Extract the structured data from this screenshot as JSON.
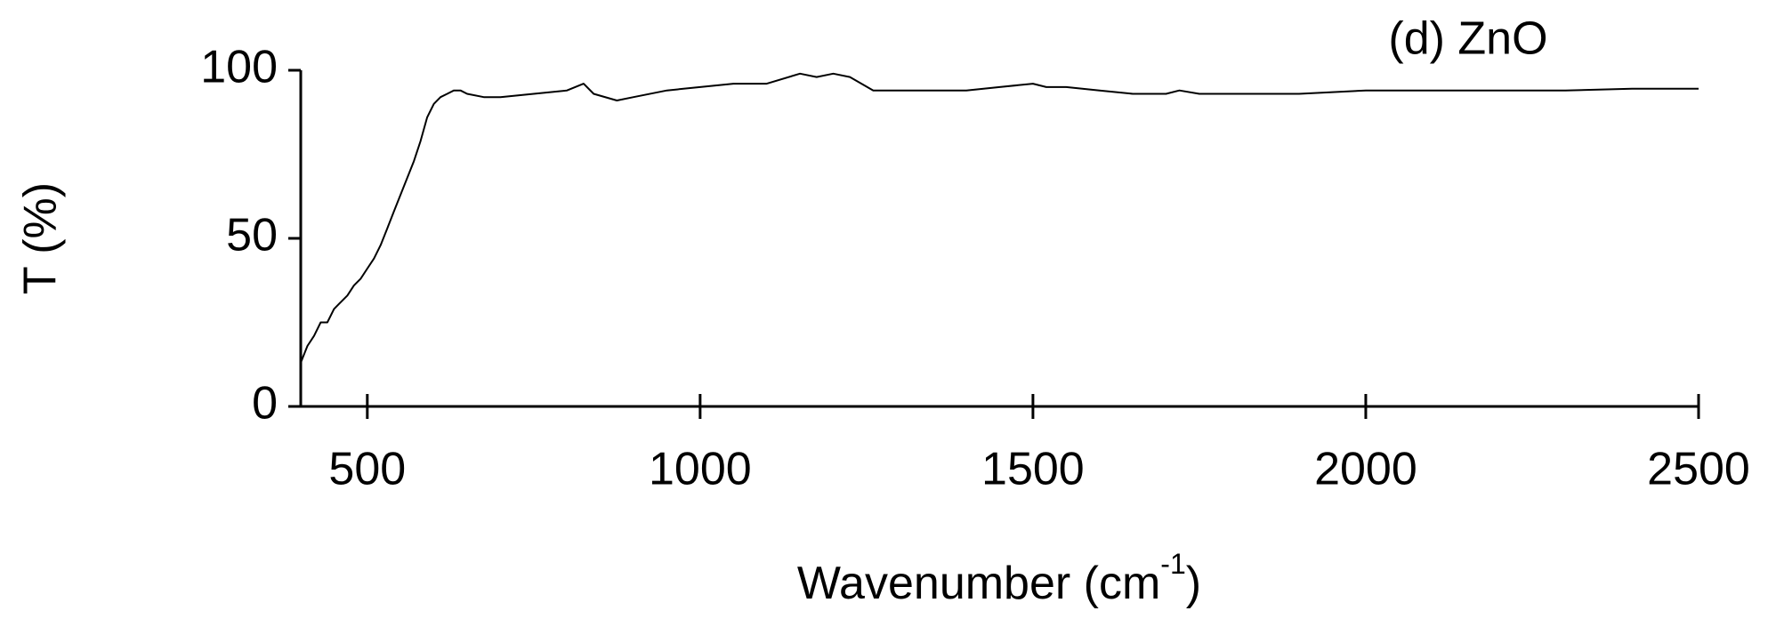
{
  "chart_data": {
    "type": "line",
    "annotation": "(d) ZnO",
    "xlabel": [
      "Wavenumber (cm",
      "-1",
      ")"
    ],
    "ylabel": "T (%)",
    "xlim": [
      400,
      2500
    ],
    "xticks": [
      500,
      1000,
      1500,
      2000,
      2500
    ],
    "ylim": [
      0,
      100
    ],
    "yticks": [
      0,
      50,
      100
    ],
    "series": [
      {
        "color": "#000000",
        "x": [
          400,
          410,
          420,
          430,
          440,
          450,
          460,
          470,
          480,
          490,
          500,
          510,
          520,
          530,
          540,
          550,
          560,
          570,
          580,
          590,
          600,
          610,
          620,
          630,
          640,
          650,
          675,
          700,
          750,
          800,
          825,
          840,
          875,
          900,
          950,
          1000,
          1050,
          1100,
          1150,
          1175,
          1200,
          1225,
          1260,
          1300,
          1350,
          1400,
          1450,
          1500,
          1520,
          1550,
          1600,
          1650,
          1700,
          1720,
          1750,
          1800,
          1900,
          2000,
          2100,
          2200,
          2300,
          2400,
          2500
        ],
        "values": [
          13,
          18,
          21,
          25,
          25,
          29,
          31,
          33,
          36,
          38,
          41,
          44,
          48,
          53,
          58,
          63,
          68,
          73,
          79,
          86,
          90,
          92,
          93,
          94,
          94,
          93,
          92,
          92,
          93,
          94,
          96,
          93,
          91,
          92,
          94,
          95,
          96,
          96,
          99,
          98,
          99,
          98,
          94,
          94,
          94,
          94,
          95,
          96,
          95,
          95,
          94,
          93,
          93,
          94,
          93,
          93,
          93,
          94,
          94,
          94,
          94,
          94.5,
          94.5
        ]
      }
    ]
  }
}
